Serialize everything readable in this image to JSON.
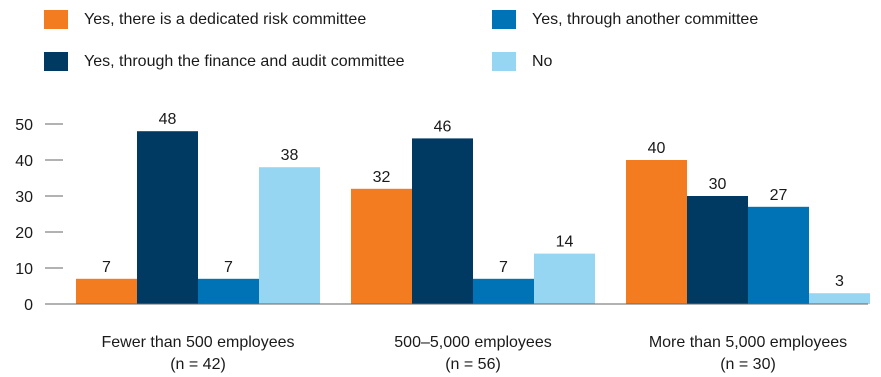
{
  "colors": {
    "orange": "#f47c20",
    "navy": "#003a63",
    "blue": "#0073b7",
    "light_blue": "#97d6f2",
    "axis": "#666666"
  },
  "legend": [
    {
      "label": "Yes, there is a dedicated risk committee",
      "color": "#f47c20"
    },
    {
      "label": "Yes, through another committee",
      "color": "#0073b7"
    },
    {
      "label": "Yes, through the finance and audit committee",
      "color": "#003a63"
    },
    {
      "label": "No",
      "color": "#97d6f2"
    }
  ],
  "chart_data": {
    "type": "bar",
    "categories": [
      [
        "Fewer than 500 employees",
        "(n = 42)"
      ],
      [
        "500–5,000 employees",
        "(n = 56)"
      ],
      [
        "More than 5,000 employees",
        "(n = 30)"
      ]
    ],
    "series": [
      {
        "name": "Yes, there is a dedicated risk committee",
        "color": "#f47c20",
        "values": [
          7,
          32,
          40
        ]
      },
      {
        "name": "Yes, through the finance and audit committee",
        "color": "#003a63",
        "values": [
          48,
          46,
          30
        ]
      },
      {
        "name": "Yes, through another committee",
        "color": "#0073b7",
        "values": [
          7,
          7,
          27
        ]
      },
      {
        "name": "No",
        "color": "#97d6f2",
        "values": [
          38,
          14,
          3
        ]
      }
    ],
    "ylim": [
      0,
      50
    ],
    "yticks": [
      0,
      10,
      20,
      30,
      40,
      50
    ],
    "xlabel": "",
    "ylabel": "",
    "title": "",
    "legend_position": "top",
    "grid": false
  }
}
